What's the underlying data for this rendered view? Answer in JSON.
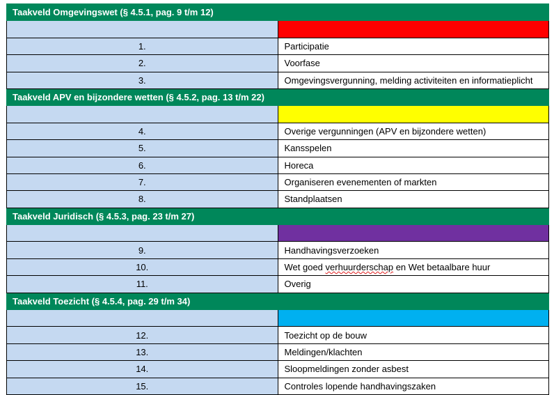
{
  "sections": [
    {
      "title": "Taakveld Omgevingswet (§ 4.5.1, pag. 9 t/m 12)",
      "color": "#FF0000",
      "items": [
        {
          "num": "1.",
          "label": "Participatie"
        },
        {
          "num": "2.",
          "label": "Voorfase"
        },
        {
          "num": "3.",
          "label": "Omgevingsvergunning, melding activiteiten en informatieplicht"
        }
      ]
    },
    {
      "title": "Taakveld APV en bijzondere wetten (§ 4.5.2, pag. 13 t/m 22)",
      "color": "#FFFF00",
      "items": [
        {
          "num": "4.",
          "label": "Overige vergunningen (APV en bijzondere wetten)"
        },
        {
          "num": "5.",
          "label": "Kansspelen"
        },
        {
          "num": "6.",
          "label": "Horeca"
        },
        {
          "num": "7.",
          "label": "Organiseren evenementen of markten"
        },
        {
          "num": "8.",
          "label": "Standplaatsen"
        }
      ]
    },
    {
      "title": "Taakveld Juridisch (§ 4.5.3, pag. 23 t/m 27)",
      "color": "#7030A0",
      "items": [
        {
          "num": "9.",
          "label": "Handhavingsverzoeken"
        },
        {
          "num": "10.",
          "label": "Wet goed verhuurderschap en Wet betaalbare huur"
        },
        {
          "num": "11.",
          "label": "Overig"
        }
      ]
    },
    {
      "title": "Taakveld Toezicht (§ 4.5.4, pag. 29 t/m 34)",
      "color": "#00B0F0",
      "items": [
        {
          "num": "12.",
          "label": "Toezicht op de bouw"
        },
        {
          "num": "13.",
          "label": "Meldingen/klachten"
        },
        {
          "num": "14.",
          "label": "Sloopmeldingen zonder asbest"
        },
        {
          "num": "15.",
          "label": "Controles lopende handhavingszaken"
        }
      ]
    }
  ]
}
